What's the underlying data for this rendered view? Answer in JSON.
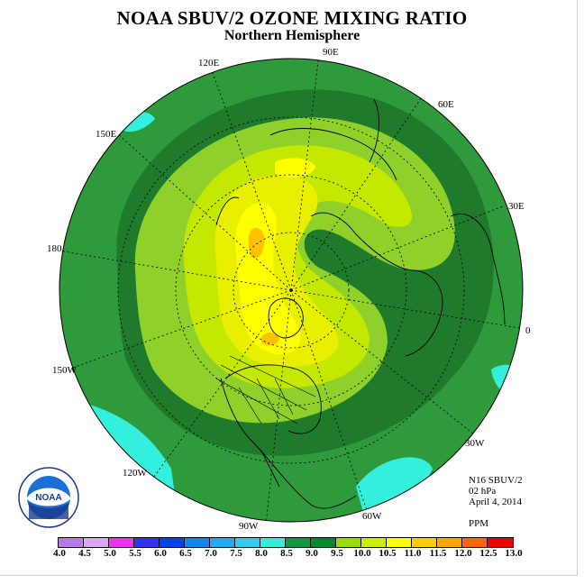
{
  "title": "NOAA SBUV/2 OZONE MIXING RATIO",
  "subtitle": "Northern Hemisphere",
  "longitude_labels": [
    "90E",
    "60E",
    "30E",
    "0",
    "30W",
    "60W",
    "90W",
    "120W",
    "150W",
    "180",
    "150E",
    "120E"
  ],
  "info": {
    "satellite": "N16 SBUV/2",
    "level": "02 hPa",
    "date": "April 4, 2014",
    "units": "PPM"
  },
  "logo_text": "NOAA",
  "colorbar": {
    "ticks": [
      "4.0",
      "4.5",
      "5.0",
      "5.5",
      "6.0",
      "6.5",
      "7.0",
      "7.5",
      "8.0",
      "8.5",
      "9.0",
      "9.5",
      "10.0",
      "10.5",
      "11.0",
      "11.5",
      "12.0",
      "12.5",
      "13.0"
    ],
    "colors": [
      "#b57be8",
      "#dca8f0",
      "#ee33ee",
      "#3333ee",
      "#0044ee",
      "#1188ee",
      "#22aaee",
      "#33ccee",
      "#33eedd",
      "#119944",
      "#008833",
      "#99dd00",
      "#ccee00",
      "#ffff00",
      "#ffcc00",
      "#ffa500",
      "#ff6600",
      "#ee0000",
      "#996644"
    ]
  },
  "colors": {
    "ocean_bg": "#2f9a3c",
    "band_8_0": "#2a8c35",
    "band_8_5": "#1f7a2c",
    "band_9_0": "#8fd12a",
    "band_9_5": "#c5e800",
    "band_10_0": "#e8f000",
    "band_10_5": "#ffff00",
    "band_11_0": "#ffc000",
    "cyan": "#33f0dc"
  }
}
